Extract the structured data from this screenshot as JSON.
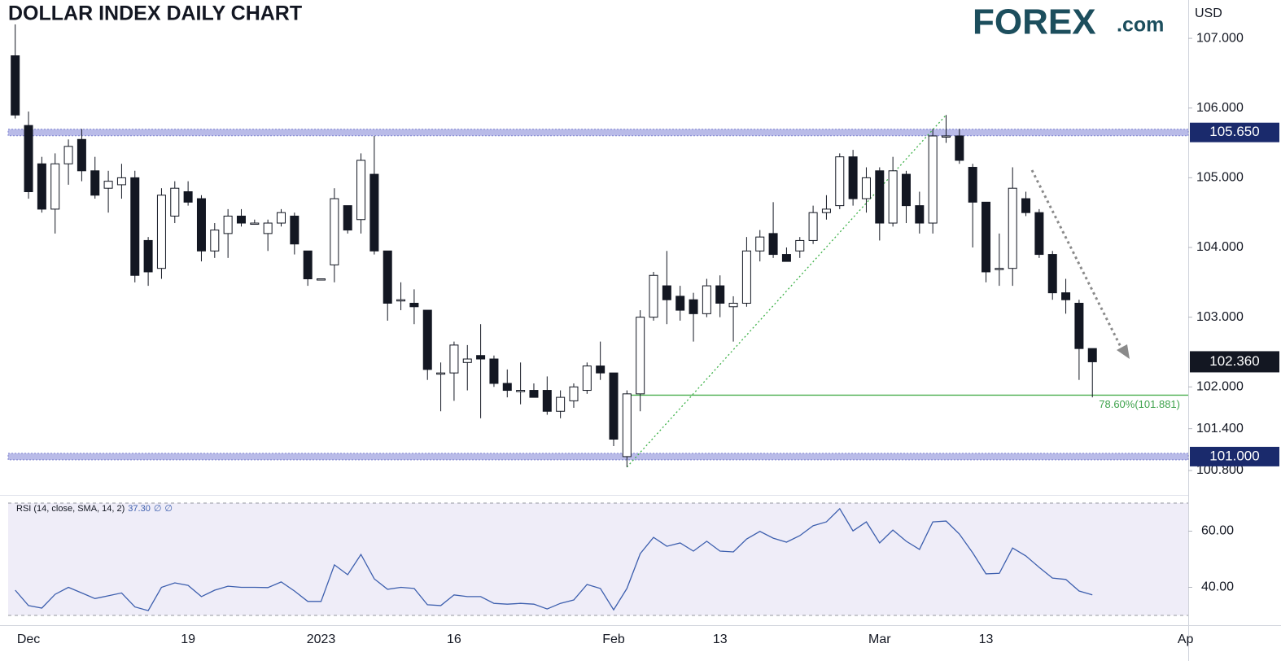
{
  "chart_data": [
    {
      "type": "candlestick",
      "title": "DOLLAR INDEX DAILY CHART",
      "logo": "FOREX",
      "logo_suffix": ".com",
      "currency": "USD",
      "categories": [
        null,
        "Dec",
        null,
        null,
        null,
        null,
        null,
        null,
        null,
        null,
        null,
        null,
        null,
        "19",
        null,
        null,
        null,
        null,
        null,
        null,
        null,
        null,
        null,
        "2023",
        null,
        null,
        null,
        null,
        null,
        null,
        null,
        null,
        null,
        "16",
        null,
        null,
        null,
        null,
        null,
        null,
        null,
        null,
        null,
        null,
        null,
        "Feb",
        null,
        null,
        null,
        null,
        null,
        null,
        null,
        "13",
        null,
        null,
        null,
        null,
        null,
        null,
        null,
        null,
        null,
        null,
        null,
        "Mar",
        null,
        null,
        null,
        null,
        null,
        null,
        null,
        "13",
        null,
        null,
        null,
        null,
        null,
        null,
        null,
        null,
        null,
        null,
        null,
        null,
        null,
        null,
        "Ap"
      ],
      "open": [
        106.75,
        105.75,
        105.2,
        104.55,
        105.2,
        105.55,
        105.1,
        104.85,
        104.9,
        105.0,
        104.1,
        103.7,
        104.45,
        104.8,
        104.7,
        103.95,
        104.2,
        104.45,
        104.35,
        104.2,
        104.35,
        104.45,
        103.95,
        103.55,
        103.75,
        104.6,
        104.4,
        105.05,
        103.95,
        103.25,
        103.2,
        103.1,
        102.2,
        102.2,
        102.35,
        102.45,
        102.4,
        102.05,
        101.95,
        101.95,
        101.95,
        101.65,
        101.8,
        101.95,
        102.3,
        102.2,
        101.0,
        101.9,
        103.0,
        103.45,
        103.3,
        103.25,
        103.05,
        103.45,
        103.15,
        103.2,
        103.95,
        104.2,
        103.9,
        103.95,
        104.1,
        104.5,
        104.6,
        105.3,
        104.7,
        105.1,
        104.35,
        105.05,
        104.6,
        104.35,
        105.6,
        105.6,
        105.15,
        104.65,
        103.7,
        103.7,
        104.7,
        104.5,
        103.9,
        103.35,
        103.2,
        102.55,
        null,
        null,
        null,
        null,
        null,
        null,
        null
      ],
      "high": [
        107.2,
        105.95,
        105.3,
        105.35,
        105.55,
        105.7,
        105.3,
        105.1,
        105.2,
        105.1,
        104.15,
        104.85,
        104.95,
        104.95,
        104.75,
        104.35,
        104.55,
        104.55,
        104.4,
        104.4,
        104.55,
        104.5,
        103.95,
        103.55,
        104.85,
        104.6,
        105.35,
        105.6,
        103.95,
        103.5,
        103.4,
        103.1,
        102.35,
        102.65,
        102.6,
        102.9,
        102.45,
        102.25,
        102.35,
        102.05,
        102.15,
        101.95,
        102.05,
        102.35,
        102.65,
        102.2,
        101.95,
        103.1,
        103.65,
        103.95,
        103.45,
        103.35,
        103.55,
        103.6,
        103.3,
        104.15,
        104.25,
        104.65,
        104.0,
        104.15,
        104.6,
        104.75,
        105.35,
        105.4,
        105.15,
        105.15,
        105.3,
        105.1,
        104.8,
        105.7,
        105.9,
        105.7,
        105.2,
        104.65,
        104.2,
        105.15,
        104.8,
        104.55,
        103.95,
        103.55,
        103.25,
        102.55,
        null,
        null,
        null,
        null,
        null,
        null,
        null
      ],
      "low": [
        105.85,
        104.7,
        104.5,
        104.2,
        104.9,
        104.95,
        104.7,
        104.5,
        104.7,
        103.5,
        103.45,
        103.55,
        104.35,
        104.6,
        103.8,
        103.85,
        103.85,
        104.3,
        104.35,
        103.95,
        104.3,
        103.9,
        103.45,
        103.55,
        103.5,
        104.2,
        104.2,
        103.9,
        102.95,
        103.1,
        102.9,
        102.1,
        101.65,
        101.8,
        101.95,
        101.55,
        102.0,
        101.85,
        101.75,
        101.85,
        101.6,
        101.55,
        101.7,
        101.9,
        102.1,
        101.15,
        100.85,
        101.65,
        102.95,
        102.9,
        102.95,
        102.65,
        103.0,
        103.0,
        102.65,
        103.15,
        103.8,
        103.85,
        103.8,
        103.85,
        104.05,
        104.4,
        104.55,
        104.6,
        104.5,
        104.1,
        104.3,
        104.35,
        104.2,
        104.2,
        105.5,
        105.2,
        104.0,
        103.5,
        103.45,
        103.45,
        104.45,
        103.85,
        103.25,
        103.05,
        102.1,
        101.85,
        null,
        null,
        null,
        null,
        null,
        null,
        null
      ],
      "close": [
        105.9,
        104.8,
        104.55,
        105.2,
        105.45,
        105.1,
        104.75,
        104.95,
        105.0,
        103.6,
        103.65,
        104.75,
        104.85,
        104.65,
        103.95,
        104.25,
        104.45,
        104.35,
        104.35,
        104.35,
        104.5,
        104.05,
        103.55,
        103.55,
        104.7,
        104.25,
        105.25,
        103.95,
        103.2,
        103.25,
        103.15,
        102.25,
        102.2,
        102.6,
        102.4,
        102.4,
        102.05,
        101.95,
        101.95,
        101.85,
        101.65,
        101.85,
        102.0,
        102.3,
        102.2,
        101.25,
        101.9,
        103.0,
        103.6,
        103.25,
        103.1,
        103.05,
        103.45,
        103.2,
        103.2,
        103.95,
        104.15,
        103.9,
        103.8,
        104.1,
        104.5,
        104.55,
        105.3,
        104.7,
        105.0,
        104.35,
        105.1,
        104.6,
        104.35,
        105.6,
        105.6,
        105.25,
        104.65,
        103.65,
        103.7,
        104.85,
        104.5,
        103.9,
        103.35,
        103.25,
        102.55,
        102.36,
        null,
        null,
        null,
        null,
        null,
        null,
        null
      ],
      "up_color": "#ffffff",
      "down_color": "#131722",
      "ylim": [
        100.45,
        107.55
      ],
      "yticks": [
        {
          "value": 100.8,
          "label": "100.800"
        },
        {
          "value": 101.4,
          "label": "101.400"
        },
        {
          "value": 102,
          "label": "102.000"
        },
        {
          "value": 103,
          "label": "103.000"
        },
        {
          "value": 104,
          "label": "104.000"
        },
        {
          "value": 105,
          "label": "105.000"
        },
        {
          "value": 106,
          "label": "106.000"
        },
        {
          "value": 107,
          "label": "107.000"
        }
      ],
      "levels": [
        {
          "value": 105.65,
          "label": "105.650"
        },
        {
          "value": 101.0,
          "label": "101.000"
        }
      ],
      "last_price": {
        "value": 102.36,
        "label": "102.360"
      },
      "fib": {
        "value": 101.881,
        "label": "78.60%(101.881)"
      }
    },
    {
      "type": "line",
      "name": "RSI (14, close, SMA, 14, 2)",
      "value_label": "37.30",
      "extras": [
        "∅",
        "∅"
      ],
      "color": "#3d5fae",
      "values": [
        39,
        33.5,
        32.6,
        37.5,
        40,
        38,
        36,
        37,
        38,
        33,
        31.7,
        40,
        41.6,
        40.7,
        36.7,
        39,
        40.4,
        40,
        40,
        39.9,
        41.9,
        38.7,
        35,
        35,
        48,
        44.5,
        51.7,
        43,
        39.3,
        40,
        39.6,
        33.8,
        33.5,
        37.3,
        36.7,
        36.7,
        34.3,
        34,
        34.3,
        34,
        32.3,
        34.3,
        35.5,
        41,
        39.6,
        32,
        39.6,
        52,
        57.8,
        54.6,
        55.8,
        52.9,
        56.4,
        52.9,
        52.6,
        57.2,
        59.9,
        57.5,
        56.1,
        58.4,
        61.9,
        63.3,
        68,
        60.1,
        63.3,
        55.8,
        60.4,
        56.4,
        53.5,
        63.3,
        63.6,
        59,
        52.3,
        44.8,
        45,
        54,
        51.2,
        47.1,
        43.3,
        42.8,
        38.7,
        37.3,
        null,
        null,
        null,
        null,
        null,
        null,
        null
      ],
      "ylim": [
        30,
        70
      ],
      "yticks": [
        {
          "value": 40,
          "label": "40.00"
        },
        {
          "value": 60,
          "label": "60.00"
        }
      ],
      "band": [
        30,
        70
      ]
    }
  ]
}
